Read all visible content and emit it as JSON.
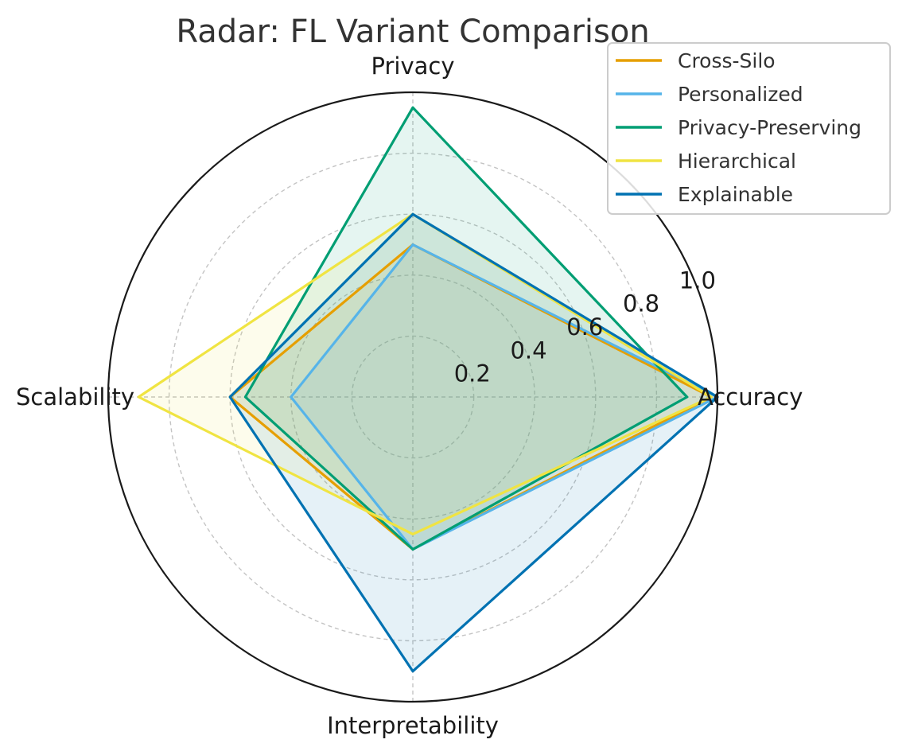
{
  "chart_data": {
    "type": "radar",
    "title": "Radar: FL Variant Comparison",
    "axes": [
      "Accuracy",
      "Privacy",
      "Scalability",
      "Interpretability"
    ],
    "rlim": [
      0,
      1.0
    ],
    "rticks": [
      0.2,
      0.4,
      0.6,
      0.8,
      1.0
    ],
    "rtick_labels": [
      "0.2",
      "0.4",
      "0.6",
      "0.8",
      "1.0"
    ],
    "grid": true,
    "legend_position": "top-right",
    "series": [
      {
        "name": "Cross-Silo",
        "color": "#E69F00",
        "values": [
          0.98,
          0.5,
          0.6,
          0.5
        ]
      },
      {
        "name": "Personalized",
        "color": "#56B4E9",
        "values": [
          1.0,
          0.5,
          0.4,
          0.5
        ]
      },
      {
        "name": "Privacy-Preserving",
        "color": "#009E73",
        "values": [
          0.9,
          0.95,
          0.55,
          0.5
        ]
      },
      {
        "name": "Hierarchical",
        "color": "#F0E442",
        "values": [
          0.98,
          0.6,
          0.9,
          0.45
        ]
      },
      {
        "name": "Explainable",
        "color": "#0072B2",
        "values": [
          1.0,
          0.6,
          0.6,
          0.9
        ]
      }
    ]
  }
}
